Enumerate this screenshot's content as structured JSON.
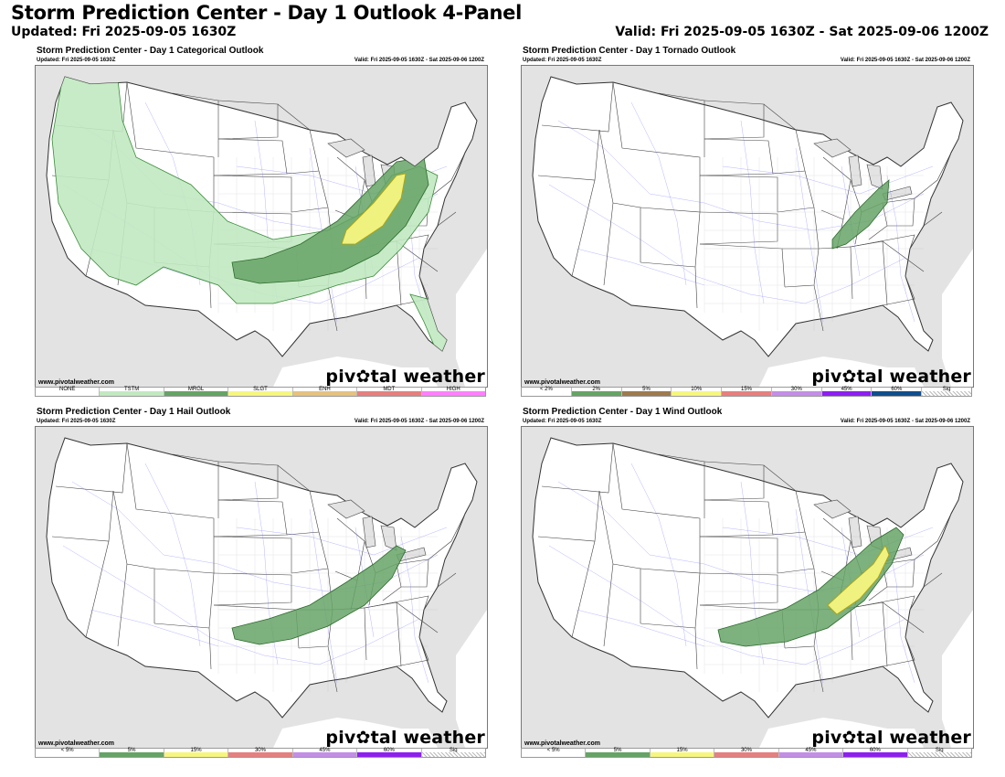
{
  "header": {
    "title": "Storm Prediction Center - Day 1 Outlook 4-Panel",
    "updated": "Updated: Fri 2025-09-05 1630Z",
    "valid": "Valid: Fri 2025-09-05 1630Z - Sat 2025-09-06 1200Z"
  },
  "panels": [
    {
      "title": "Storm Prediction Center - Day 1 Categorical Outlook",
      "updated": "Updated: Fri 2025-09-05 1630Z",
      "valid": "Valid: Fri 2025-09-05 1630Z - Sat 2025-09-06 1200Z",
      "watermark_url": "www.pivotalweather.com",
      "watermark_logo": "piv✿tal weather",
      "legend": [
        {
          "label": "NONE",
          "color": "#ffffff"
        },
        {
          "label": "TSTM",
          "color": "#c1e9c1"
        },
        {
          "label": "MRGL",
          "color": "#66a366"
        },
        {
          "label": "SLGT",
          "color": "#f6f67f"
        },
        {
          "label": "ENH",
          "color": "#e6c27f"
        },
        {
          "label": "MDT",
          "color": "#e67f7f"
        },
        {
          "label": "HIGH",
          "color": "#ff7fff"
        }
      ]
    },
    {
      "title": "Storm Prediction Center - Day 1 Tornado Outlook",
      "updated": "Updated: Fri 2025-09-05 1630Z",
      "valid": "Valid: Fri 2025-09-05 1630Z - Sat 2025-09-06 1200Z",
      "watermark_url": "www.pivotalweather.com",
      "watermark_logo": "piv✿tal weather",
      "legend": [
        {
          "label": "< 2%",
          "color": "#ffffff"
        },
        {
          "label": "2%",
          "color": "#66a366"
        },
        {
          "label": "5%",
          "color": "#9d7a4f"
        },
        {
          "label": "10%",
          "color": "#f6f67f"
        },
        {
          "label": "15%",
          "color": "#e67f7f"
        },
        {
          "label": "30%",
          "color": "#c38ee6"
        },
        {
          "label": "45%",
          "color": "#8d1ff0"
        },
        {
          "label": "60%",
          "color": "#104e8b"
        },
        {
          "label": "Sig",
          "color": "hatch"
        }
      ]
    },
    {
      "title": "Storm Prediction Center - Day 1 Hail Outlook",
      "updated": "Updated: Fri 2025-09-05 1630Z",
      "valid": "Valid: Fri 2025-09-05 1630Z - Sat 2025-09-06 1200Z",
      "watermark_url": "www.pivotalweather.com",
      "watermark_logo": "piv✿tal weather",
      "legend": [
        {
          "label": "< 5%",
          "color": "#ffffff"
        },
        {
          "label": "5%",
          "color": "#66a366"
        },
        {
          "label": "15%",
          "color": "#f6f67f"
        },
        {
          "label": "30%",
          "color": "#e67f7f"
        },
        {
          "label": "45%",
          "color": "#c38ee6"
        },
        {
          "label": "60%",
          "color": "#8d1ff0"
        },
        {
          "label": "Sig",
          "color": "hatch"
        }
      ]
    },
    {
      "title": "Storm Prediction Center - Day 1 Wind Outlook",
      "updated": "Updated: Fri 2025-09-05 1630Z",
      "valid": "Valid: Fri 2025-09-05 1630Z - Sat 2025-09-06 1200Z",
      "watermark_url": "www.pivotalweather.com",
      "watermark_logo": "piv✿tal weather",
      "legend": [
        {
          "label": "< 5%",
          "color": "#ffffff"
        },
        {
          "label": "5%",
          "color": "#66a366"
        },
        {
          "label": "15%",
          "color": "#f6f67f"
        },
        {
          "label": "30%",
          "color": "#e67f7f"
        },
        {
          "label": "45%",
          "color": "#c38ee6"
        },
        {
          "label": "60%",
          "color": "#8d1ff0"
        },
        {
          "label": "Sig",
          "color": "hatch"
        }
      ]
    }
  ]
}
